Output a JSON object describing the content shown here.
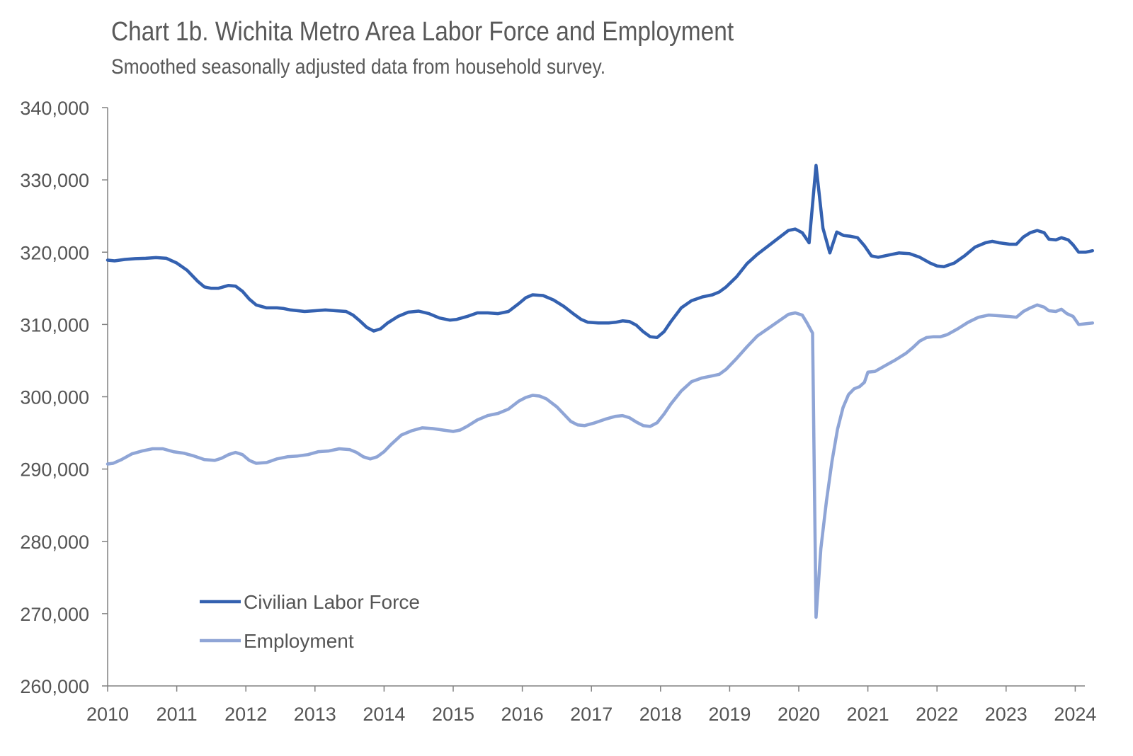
{
  "chart_data": {
    "type": "line",
    "title": "Chart 1b. Wichita Metro Area Labor Force and Employment",
    "subtitle": "Smoothed seasonally adjusted data from household survey.",
    "xlabel": "",
    "ylabel": "",
    "x_tick_labels": [
      "2010",
      "2011",
      "2012",
      "2013",
      "2014",
      "2015",
      "2016",
      "2017",
      "2018",
      "2019",
      "2020",
      "2021",
      "2022",
      "2023",
      "2024"
    ],
    "y_tick_labels": [
      "260,000",
      "270,000",
      "280,000",
      "290,000",
      "300,000",
      "310,000",
      "320,000",
      "330,000",
      "340,000"
    ],
    "xlim": [
      2010,
      2024.15
    ],
    "ylim": [
      260000,
      340000
    ],
    "grid": false,
    "legend_position": "bottom-left",
    "series": [
      {
        "name": "Civilian Labor Force",
        "color": "#3461B0",
        "points": [
          [
            2010.0,
            318900
          ],
          [
            2010.1,
            318800
          ],
          [
            2010.25,
            319000
          ],
          [
            2010.4,
            319100
          ],
          [
            2010.55,
            319150
          ],
          [
            2010.7,
            319250
          ],
          [
            2010.85,
            319150
          ],
          [
            2011.0,
            318500
          ],
          [
            2011.15,
            317500
          ],
          [
            2011.3,
            316000
          ],
          [
            2011.4,
            315200
          ],
          [
            2011.5,
            315000
          ],
          [
            2011.6,
            315000
          ],
          [
            2011.75,
            315400
          ],
          [
            2011.85,
            315300
          ],
          [
            2011.95,
            314600
          ],
          [
            2012.05,
            313500
          ],
          [
            2012.15,
            312700
          ],
          [
            2012.3,
            312300
          ],
          [
            2012.45,
            312300
          ],
          [
            2012.55,
            312200
          ],
          [
            2012.65,
            312000
          ],
          [
            2012.85,
            311800
          ],
          [
            2013.0,
            311900
          ],
          [
            2013.15,
            312000
          ],
          [
            2013.3,
            311900
          ],
          [
            2013.45,
            311800
          ],
          [
            2013.55,
            311300
          ],
          [
            2013.65,
            310500
          ],
          [
            2013.75,
            309600
          ],
          [
            2013.85,
            309100
          ],
          [
            2013.95,
            309400
          ],
          [
            2014.05,
            310200
          ],
          [
            2014.2,
            311100
          ],
          [
            2014.35,
            311700
          ],
          [
            2014.5,
            311850
          ],
          [
            2014.65,
            311500
          ],
          [
            2014.8,
            310900
          ],
          [
            2014.95,
            310600
          ],
          [
            2015.05,
            310700
          ],
          [
            2015.2,
            311100
          ],
          [
            2015.35,
            311600
          ],
          [
            2015.5,
            311600
          ],
          [
            2015.65,
            311500
          ],
          [
            2015.8,
            311800
          ],
          [
            2015.95,
            312900
          ],
          [
            2016.05,
            313700
          ],
          [
            2016.15,
            314100
          ],
          [
            2016.3,
            314000
          ],
          [
            2016.45,
            313400
          ],
          [
            2016.6,
            312500
          ],
          [
            2016.75,
            311400
          ],
          [
            2016.85,
            310700
          ],
          [
            2016.95,
            310300
          ],
          [
            2017.1,
            310200
          ],
          [
            2017.25,
            310200
          ],
          [
            2017.35,
            310300
          ],
          [
            2017.45,
            310500
          ],
          [
            2017.55,
            310400
          ],
          [
            2017.65,
            309900
          ],
          [
            2017.75,
            309000
          ],
          [
            2017.85,
            308300
          ],
          [
            2017.95,
            308200
          ],
          [
            2018.05,
            309000
          ],
          [
            2018.15,
            310400
          ],
          [
            2018.3,
            312300
          ],
          [
            2018.45,
            313300
          ],
          [
            2018.6,
            313800
          ],
          [
            2018.75,
            314100
          ],
          [
            2018.85,
            314500
          ],
          [
            2018.95,
            315200
          ],
          [
            2019.1,
            316600
          ],
          [
            2019.25,
            318400
          ],
          [
            2019.4,
            319700
          ],
          [
            2019.55,
            320800
          ],
          [
            2019.7,
            321900
          ],
          [
            2019.85,
            323000
          ],
          [
            2019.95,
            323200
          ],
          [
            2020.05,
            322700
          ],
          [
            2020.15,
            321300
          ],
          [
            2020.25,
            332000
          ],
          [
            2020.35,
            323300
          ],
          [
            2020.45,
            319900
          ],
          [
            2020.55,
            322800
          ],
          [
            2020.65,
            322300
          ],
          [
            2020.75,
            322200
          ],
          [
            2020.85,
            322000
          ],
          [
            2020.95,
            320900
          ],
          [
            2021.05,
            319500
          ],
          [
            2021.15,
            319300
          ],
          [
            2021.3,
            319600
          ],
          [
            2021.45,
            319900
          ],
          [
            2021.6,
            319800
          ],
          [
            2021.75,
            319300
          ],
          [
            2021.9,
            318500
          ],
          [
            2022.0,
            318100
          ],
          [
            2022.1,
            318000
          ],
          [
            2022.25,
            318500
          ],
          [
            2022.4,
            319500
          ],
          [
            2022.55,
            320700
          ],
          [
            2022.7,
            321300
          ],
          [
            2022.8,
            321500
          ],
          [
            2022.9,
            321300
          ],
          [
            2023.05,
            321100
          ],
          [
            2023.15,
            321100
          ],
          [
            2023.25,
            322100
          ],
          [
            2023.35,
            322700
          ],
          [
            2023.45,
            323000
          ],
          [
            2023.55,
            322700
          ],
          [
            2023.62,
            321800
          ],
          [
            2023.72,
            321700
          ],
          [
            2023.8,
            322000
          ],
          [
            2023.9,
            321700
          ],
          [
            2023.97,
            321000
          ],
          [
            2024.05,
            320000
          ],
          [
            2024.15,
            320000
          ],
          [
            2024.25,
            320200
          ]
        ]
      },
      {
        "name": "Employment",
        "color": "#8FA5D6",
        "points": [
          [
            2010.0,
            290700
          ],
          [
            2010.08,
            290800
          ],
          [
            2010.2,
            291300
          ],
          [
            2010.35,
            292100
          ],
          [
            2010.5,
            292500
          ],
          [
            2010.65,
            292800
          ],
          [
            2010.8,
            292800
          ],
          [
            2010.95,
            292400
          ],
          [
            2011.1,
            292200
          ],
          [
            2011.25,
            291800
          ],
          [
            2011.4,
            291300
          ],
          [
            2011.55,
            291200
          ],
          [
            2011.65,
            291500
          ],
          [
            2011.75,
            292000
          ],
          [
            2011.85,
            292300
          ],
          [
            2011.95,
            292000
          ],
          [
            2012.05,
            291200
          ],
          [
            2012.15,
            290800
          ],
          [
            2012.3,
            290900
          ],
          [
            2012.45,
            291400
          ],
          [
            2012.6,
            291700
          ],
          [
            2012.75,
            291800
          ],
          [
            2012.9,
            292000
          ],
          [
            2013.05,
            292400
          ],
          [
            2013.2,
            292500
          ],
          [
            2013.35,
            292800
          ],
          [
            2013.5,
            292700
          ],
          [
            2013.6,
            292300
          ],
          [
            2013.7,
            291700
          ],
          [
            2013.8,
            291400
          ],
          [
            2013.9,
            291700
          ],
          [
            2014.0,
            292400
          ],
          [
            2014.1,
            293400
          ],
          [
            2014.25,
            294700
          ],
          [
            2014.4,
            295300
          ],
          [
            2014.55,
            295700
          ],
          [
            2014.7,
            295600
          ],
          [
            2014.85,
            295400
          ],
          [
            2015.0,
            295200
          ],
          [
            2015.1,
            295400
          ],
          [
            2015.2,
            295900
          ],
          [
            2015.35,
            296800
          ],
          [
            2015.5,
            297400
          ],
          [
            2015.65,
            297700
          ],
          [
            2015.8,
            298300
          ],
          [
            2015.95,
            299400
          ],
          [
            2016.05,
            299900
          ],
          [
            2016.15,
            300200
          ],
          [
            2016.25,
            300100
          ],
          [
            2016.35,
            299700
          ],
          [
            2016.5,
            298600
          ],
          [
            2016.6,
            297600
          ],
          [
            2016.7,
            296600
          ],
          [
            2016.8,
            296100
          ],
          [
            2016.9,
            296000
          ],
          [
            2017.05,
            296400
          ],
          [
            2017.2,
            296900
          ],
          [
            2017.35,
            297300
          ],
          [
            2017.45,
            297400
          ],
          [
            2017.55,
            297100
          ],
          [
            2017.65,
            296500
          ],
          [
            2017.75,
            296000
          ],
          [
            2017.85,
            295900
          ],
          [
            2017.95,
            296400
          ],
          [
            2018.05,
            297600
          ],
          [
            2018.15,
            299000
          ],
          [
            2018.3,
            300800
          ],
          [
            2018.45,
            302100
          ],
          [
            2018.6,
            302600
          ],
          [
            2018.75,
            302900
          ],
          [
            2018.85,
            303100
          ],
          [
            2018.95,
            303800
          ],
          [
            2019.1,
            305300
          ],
          [
            2019.25,
            306900
          ],
          [
            2019.4,
            308400
          ],
          [
            2019.55,
            309400
          ],
          [
            2019.7,
            310400
          ],
          [
            2019.85,
            311400
          ],
          [
            2019.95,
            311600
          ],
          [
            2020.05,
            311300
          ],
          [
            2020.12,
            310200
          ],
          [
            2020.2,
            308800
          ],
          [
            2020.25,
            269500
          ],
          [
            2020.32,
            279000
          ],
          [
            2020.4,
            285500
          ],
          [
            2020.48,
            291000
          ],
          [
            2020.56,
            295500
          ],
          [
            2020.64,
            298500
          ],
          [
            2020.72,
            300300
          ],
          [
            2020.8,
            301100
          ],
          [
            2020.88,
            301400
          ],
          [
            2020.95,
            302000
          ],
          [
            2021.0,
            303400
          ],
          [
            2021.1,
            303500
          ],
          [
            2021.25,
            304300
          ],
          [
            2021.4,
            305100
          ],
          [
            2021.55,
            306000
          ],
          [
            2021.65,
            306800
          ],
          [
            2021.75,
            307700
          ],
          [
            2021.85,
            308200
          ],
          [
            2021.95,
            308300
          ],
          [
            2022.05,
            308300
          ],
          [
            2022.15,
            308600
          ],
          [
            2022.3,
            309400
          ],
          [
            2022.45,
            310300
          ],
          [
            2022.6,
            311000
          ],
          [
            2022.75,
            311300
          ],
          [
            2022.9,
            311200
          ],
          [
            2023.05,
            311100
          ],
          [
            2023.15,
            311000
          ],
          [
            2023.25,
            311800
          ],
          [
            2023.35,
            312300
          ],
          [
            2023.45,
            312700
          ],
          [
            2023.55,
            312400
          ],
          [
            2023.62,
            311900
          ],
          [
            2023.72,
            311800
          ],
          [
            2023.8,
            312100
          ],
          [
            2023.88,
            311500
          ],
          [
            2023.97,
            311100
          ],
          [
            2024.05,
            310000
          ],
          [
            2024.15,
            310100
          ],
          [
            2024.25,
            310200
          ]
        ]
      }
    ]
  }
}
